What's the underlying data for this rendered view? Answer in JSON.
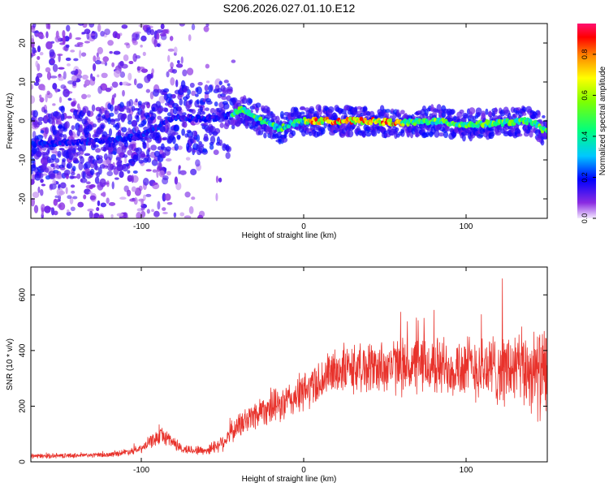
{
  "title": "S206.2026.027.01.10.E12",
  "chart_data": [
    {
      "type": "heatmap",
      "xlabel": "Height of straight line (km)",
      "ylabel": "Frequency (Hz)",
      "xlim": [
        -168,
        150
      ],
      "ylim": [
        -25,
        25
      ],
      "xticks": [
        -100,
        0,
        100
      ],
      "yticks": [
        -20,
        -10,
        0,
        10,
        20
      ],
      "colorbar": {
        "label": "Normalized spectral amplitude",
        "range": [
          0.0,
          0.95
        ],
        "ticks": [
          0.0,
          0.2,
          0.4,
          0.6,
          0.8
        ]
      },
      "ridge": {
        "x": [
          -168,
          -120,
          -100,
          -80,
          -60,
          -45,
          -38,
          -30,
          -20,
          -15,
          -10,
          0,
          20,
          40,
          60,
          80,
          100,
          120,
          140,
          150
        ],
        "freq": [
          -6,
          -5,
          -4,
          1,
          0.5,
          1.5,
          3,
          1,
          -1,
          -2,
          -1,
          0,
          0,
          0,
          -0.5,
          0,
          -1,
          -0.5,
          0,
          -3
        ]
      }
    },
    {
      "type": "line",
      "xlabel": "Height of straight line (km)",
      "ylabel": "SNR (10 * v/v)",
      "xlim": [
        -168,
        150
      ],
      "ylim": [
        0,
        700
      ],
      "xticks": [
        -100,
        0,
        100
      ],
      "yticks": [
        0,
        200,
        400,
        600
      ],
      "color": "#e8322b",
      "envelope": {
        "x": [
          -168,
          -120,
          -100,
          -95,
          -88,
          -82,
          -75,
          -60,
          -50,
          -42,
          -35,
          -25,
          -15,
          0,
          20,
          40,
          70,
          100,
          140,
          150
        ],
        "mean": [
          20,
          25,
          45,
          70,
          95,
          80,
          45,
          40,
          70,
          120,
          150,
          190,
          200,
          250,
          330,
          340,
          345,
          340,
          330,
          300
        ],
        "spread": [
          8,
          8,
          14,
          22,
          28,
          26,
          16,
          16,
          30,
          40,
          50,
          55,
          60,
          70,
          80,
          90,
          100,
          110,
          140,
          170
        ]
      }
    }
  ]
}
